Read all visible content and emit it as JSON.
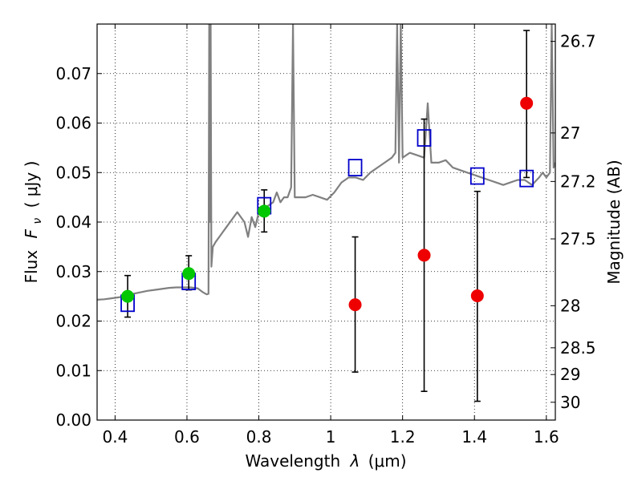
{
  "chart_data": {
    "type": "scatter",
    "xlabel_prefix": "Wavelength",
    "xlabel_symbol": "λ",
    "xlabel_unit": "(μm)",
    "ylabel_prefix": "Flux",
    "ylabel_symbol": "F",
    "ylabel_subscript": "ν",
    "ylabel_unit": "( μJy )",
    "y2label": "Magnitude (AB)",
    "xlim": [
      0.35,
      1.625
    ],
    "ylim": [
      0.0,
      0.08
    ],
    "x_ticks": [
      0.4,
      0.6,
      0.8,
      1.0,
      1.2,
      1.4,
      1.6
    ],
    "x_tick_labels": [
      "0.4",
      "0.6",
      "0.8",
      "1",
      "1.2",
      "1.4",
      "1.6"
    ],
    "y_ticks": [
      0.0,
      0.01,
      0.02,
      0.03,
      0.04,
      0.05,
      0.06,
      0.07
    ],
    "y_tick_labels": [
      "0.00",
      "0.01",
      "0.02",
      "0.03",
      "0.04",
      "0.05",
      "0.06",
      "0.07"
    ],
    "y2_ticks": [
      {
        "label": "26.7",
        "flux": 0.0765
      },
      {
        "label": "27",
        "flux": 0.058
      },
      {
        "label": "27.2",
        "flux": 0.0482
      },
      {
        "label": "27.5",
        "flux": 0.0366
      },
      {
        "label": "28",
        "flux": 0.0231
      },
      {
        "label": "28.5",
        "flux": 0.0146
      },
      {
        "label": "29",
        "flux": 0.0092
      },
      {
        "label": "30",
        "flux": 0.0036
      }
    ],
    "grid": true,
    "colors": {
      "spectrum": "#808080",
      "detections": "#00c800",
      "upper_limits": "#ee0000",
      "model": "#0000cc",
      "errorbar": "#000000"
    },
    "series": [
      {
        "kind": "spectrum",
        "points": [
          [
            0.35,
            0.0243
          ],
          [
            0.37,
            0.0244
          ],
          [
            0.39,
            0.0246
          ],
          [
            0.41,
            0.0248
          ],
          [
            0.43,
            0.0251
          ],
          [
            0.45,
            0.0255
          ],
          [
            0.47,
            0.0258
          ],
          [
            0.49,
            0.0261
          ],
          [
            0.51,
            0.0263
          ],
          [
            0.53,
            0.0265
          ],
          [
            0.55,
            0.0267
          ],
          [
            0.57,
            0.0268
          ],
          [
            0.59,
            0.0268
          ],
          [
            0.61,
            0.0268
          ],
          [
            0.63,
            0.0266
          ],
          [
            0.645,
            0.0258
          ],
          [
            0.655,
            0.0254
          ],
          [
            0.66,
            0.0255
          ],
          [
            0.662,
            0.08
          ],
          [
            0.664,
            0.04
          ],
          [
            0.666,
            0.08
          ],
          [
            0.668,
            0.031
          ],
          [
            0.672,
            0.035
          ],
          [
            0.68,
            0.036
          ],
          [
            0.69,
            0.037
          ],
          [
            0.7,
            0.038
          ],
          [
            0.71,
            0.039
          ],
          [
            0.72,
            0.04
          ],
          [
            0.73,
            0.041
          ],
          [
            0.74,
            0.042
          ],
          [
            0.75,
            0.041
          ],
          [
            0.76,
            0.04
          ],
          [
            0.77,
            0.037
          ],
          [
            0.78,
            0.041
          ],
          [
            0.79,
            0.039
          ],
          [
            0.8,
            0.042
          ],
          [
            0.82,
            0.043
          ],
          [
            0.84,
            0.044
          ],
          [
            0.85,
            0.046
          ],
          [
            0.86,
            0.044
          ],
          [
            0.87,
            0.045
          ],
          [
            0.88,
            0.045
          ],
          [
            0.89,
            0.047
          ],
          [
            0.895,
            0.08
          ],
          [
            0.9,
            0.045
          ],
          [
            0.91,
            0.045
          ],
          [
            0.93,
            0.045
          ],
          [
            0.95,
            0.0455
          ],
          [
            0.97,
            0.045
          ],
          [
            0.99,
            0.0445
          ],
          [
            1.01,
            0.046
          ],
          [
            1.03,
            0.048
          ],
          [
            1.05,
            0.049
          ],
          [
            1.07,
            0.049
          ],
          [
            1.09,
            0.0485
          ],
          [
            1.11,
            0.05
          ],
          [
            1.13,
            0.051
          ],
          [
            1.15,
            0.052
          ],
          [
            1.17,
            0.053
          ],
          [
            1.18,
            0.054
          ],
          [
            1.185,
            0.08
          ],
          [
            1.19,
            0.052
          ],
          [
            1.195,
            0.08
          ],
          [
            1.2,
            0.053
          ],
          [
            1.22,
            0.054
          ],
          [
            1.24,
            0.0535
          ],
          [
            1.26,
            0.053
          ],
          [
            1.27,
            0.064
          ],
          [
            1.28,
            0.052
          ],
          [
            1.3,
            0.052
          ],
          [
            1.32,
            0.0525
          ],
          [
            1.34,
            0.051
          ],
          [
            1.36,
            0.0505
          ],
          [
            1.38,
            0.05
          ],
          [
            1.4,
            0.0495
          ],
          [
            1.42,
            0.049
          ],
          [
            1.44,
            0.0485
          ],
          [
            1.46,
            0.048
          ],
          [
            1.48,
            0.0475
          ],
          [
            1.5,
            0.048
          ],
          [
            1.52,
            0.0485
          ],
          [
            1.54,
            0.0485
          ],
          [
            1.56,
            0.0475
          ],
          [
            1.58,
            0.049
          ],
          [
            1.59,
            0.05
          ],
          [
            1.6,
            0.049
          ],
          [
            1.61,
            0.05
          ],
          [
            1.615,
            0.08
          ],
          [
            1.62,
            0.051
          ],
          [
            1.625,
            0.052
          ]
        ]
      },
      {
        "kind": "detections",
        "points": [
          {
            "x": 0.435,
            "y": 0.025,
            "err_lo": 0.0208,
            "err_hi": 0.0292
          },
          {
            "x": 0.605,
            "y": 0.0296,
            "err_lo": 0.0263,
            "err_hi": 0.0332
          },
          {
            "x": 0.815,
            "y": 0.0422,
            "err_lo": 0.038,
            "err_hi": 0.0465
          }
        ]
      },
      {
        "kind": "upper_limits",
        "points": [
          {
            "x": 1.068,
            "y": 0.0233,
            "err_lo": 0.0097,
            "err_hi": 0.037
          },
          {
            "x": 1.26,
            "y": 0.0333,
            "err_lo": 0.0058,
            "err_hi": 0.0608
          },
          {
            "x": 1.408,
            "y": 0.0251,
            "err_lo": 0.0038,
            "err_hi": 0.0462
          },
          {
            "x": 1.545,
            "y": 0.064,
            "err_lo": 0.049,
            "err_hi": 0.0787
          }
        ]
      },
      {
        "kind": "model",
        "points": [
          {
            "x": 0.435,
            "y": 0.0236
          },
          {
            "x": 0.605,
            "y": 0.028
          },
          {
            "x": 0.815,
            "y": 0.0433
          },
          {
            "x": 1.068,
            "y": 0.051
          },
          {
            "x": 1.26,
            "y": 0.057
          },
          {
            "x": 1.408,
            "y": 0.0493
          },
          {
            "x": 1.545,
            "y": 0.0488
          }
        ]
      }
    ]
  }
}
